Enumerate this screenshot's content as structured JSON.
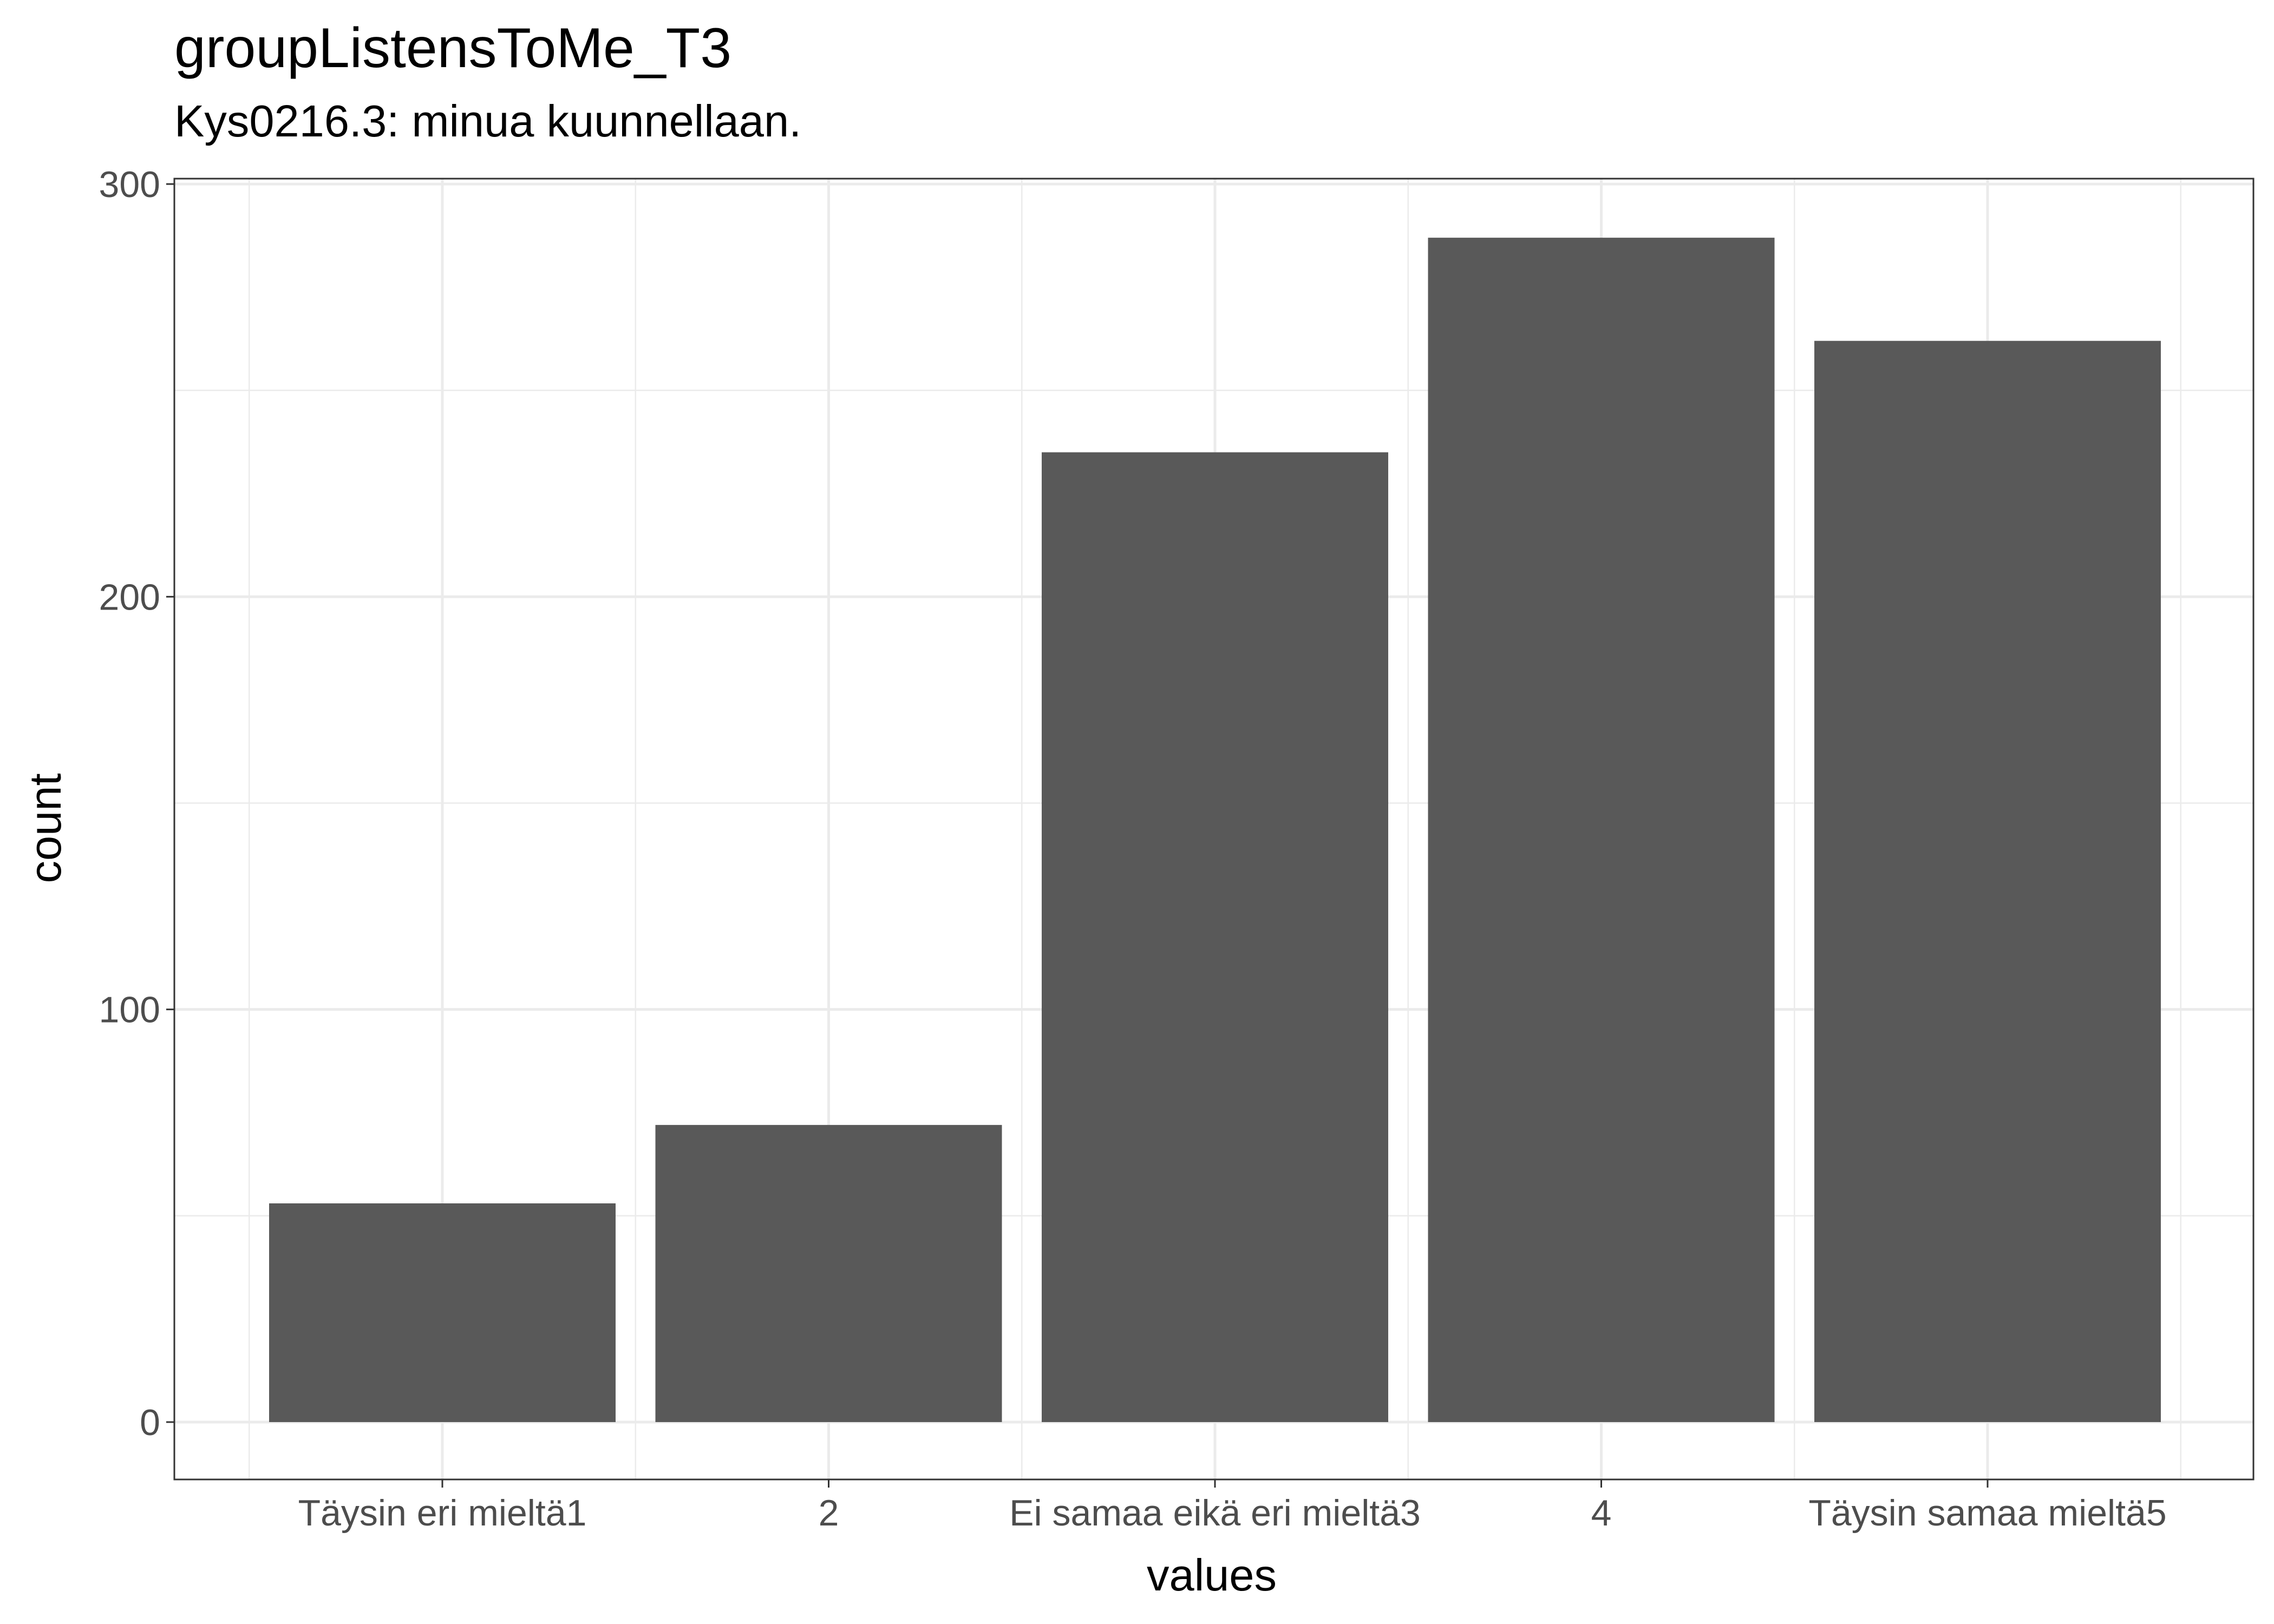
{
  "chart_data": {
    "type": "bar",
    "title": "groupListensToMe_T3",
    "subtitle": "Kys0216.3: minua kuunnellaan.",
    "xlabel": "values",
    "ylabel": "count",
    "categories": [
      "Täysin eri mieltä1",
      "2",
      "Ei samaa eikä eri mieltä3",
      "4",
      "Täysin samaa mieltä5"
    ],
    "values": [
      53,
      72,
      235,
      287,
      262
    ],
    "ylim": [
      -14,
      300
    ],
    "yticks": [
      0,
      100,
      200,
      300
    ],
    "ytick_labels": [
      "0",
      "100",
      "200",
      "300"
    ],
    "grid": true,
    "bar_color": "#595959",
    "grid_color": "#ebebeb",
    "panel_border_color": "#333333"
  }
}
